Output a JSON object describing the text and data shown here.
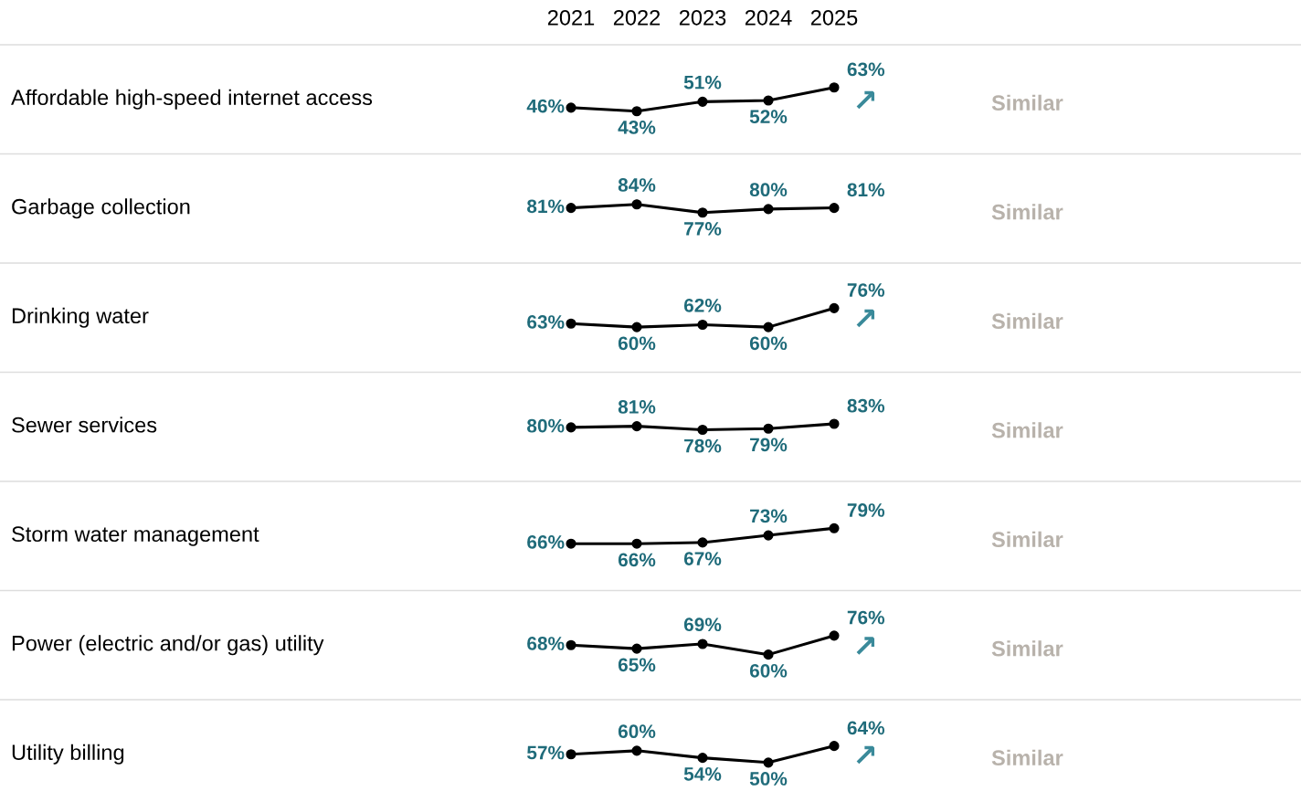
{
  "chart_data": [
    {
      "type": "line",
      "ylabel": "Affordable high-speed internet access",
      "categories": [
        "2021",
        "2022",
        "2023",
        "2024",
        "2025"
      ],
      "series": [
        {
          "color": "#000000",
          "values": [
            46,
            43,
            51,
            52,
            63
          ],
          "value_labels": [
            "46%",
            "43%",
            "51%",
            "52%",
            "63%"
          ]
        }
      ],
      "marker": "circle",
      "tick_labels": "x",
      "annotations": [
        "↗",
        "Similar"
      ]
    },
    {
      "type": "line",
      "ylabel": "Garbage collection",
      "categories": [
        "2021",
        "2022",
        "2023",
        "2024",
        "2025"
      ],
      "series": [
        {
          "color": "#000000",
          "values": [
            81,
            84,
            77,
            80,
            81
          ],
          "value_labels": [
            "81%",
            "84%",
            "77%",
            "80%",
            "81%"
          ]
        }
      ],
      "marker": "circle",
      "tick_labels": false,
      "annotations": [
        "Similar"
      ]
    },
    {
      "type": "line",
      "ylabel": "Drinking water",
      "categories": [
        "2021",
        "2022",
        "2023",
        "2024",
        "2025"
      ],
      "series": [
        {
          "color": "#000000",
          "values": [
            63,
            60,
            62,
            60,
            76
          ],
          "value_labels": [
            "63%",
            "60%",
            "62%",
            "60%",
            "76%"
          ]
        }
      ],
      "marker": "circle",
      "tick_labels": false,
      "annotations": [
        "↗",
        "Similar"
      ]
    },
    {
      "type": "line",
      "ylabel": "Sewer services",
      "categories": [
        "2021",
        "2022",
        "2023",
        "2024",
        "2025"
      ],
      "series": [
        {
          "color": "#000000",
          "values": [
            80,
            81,
            78,
            79,
            83
          ],
          "value_labels": [
            "80%",
            "81%",
            "78%",
            "79%",
            "83%"
          ]
        }
      ],
      "marker": "circle",
      "tick_labels": false,
      "annotations": [
        "Similar"
      ]
    },
    {
      "type": "line",
      "ylabel": "Storm water management",
      "categories": [
        "2021",
        "2022",
        "2023",
        "2024",
        "2025"
      ],
      "series": [
        {
          "color": "#000000",
          "values": [
            66,
            66,
            67,
            73,
            79
          ],
          "value_labels": [
            "66%",
            "66%",
            "67%",
            "73%",
            "79%"
          ]
        }
      ],
      "marker": "circle",
      "tick_labels": false,
      "annotations": [
        "Similar"
      ]
    },
    {
      "type": "line",
      "ylabel": "Power (electric and/or gas) utility",
      "categories": [
        "2021",
        "2022",
        "2023",
        "2024",
        "2025"
      ],
      "series": [
        {
          "color": "#000000",
          "values": [
            68,
            65,
            69,
            60,
            76
          ],
          "value_labels": [
            "68%",
            "65%",
            "69%",
            "60%",
            "76%"
          ]
        }
      ],
      "marker": "circle",
      "tick_labels": false,
      "annotations": [
        "↗",
        "Similar"
      ]
    },
    {
      "type": "line",
      "ylabel": "Utility billing",
      "categories": [
        "2021",
        "2022",
        "2023",
        "2024",
        "2025"
      ],
      "series": [
        {
          "color": "#000000",
          "values": [
            57,
            60,
            54,
            50,
            64
          ],
          "value_labels": [
            "57%",
            "60%",
            "54%",
            "50%",
            "64%"
          ]
        }
      ],
      "marker": "circle",
      "tick_labels": false,
      "annotations": [
        "↗",
        "Similar"
      ]
    }
  ]
}
